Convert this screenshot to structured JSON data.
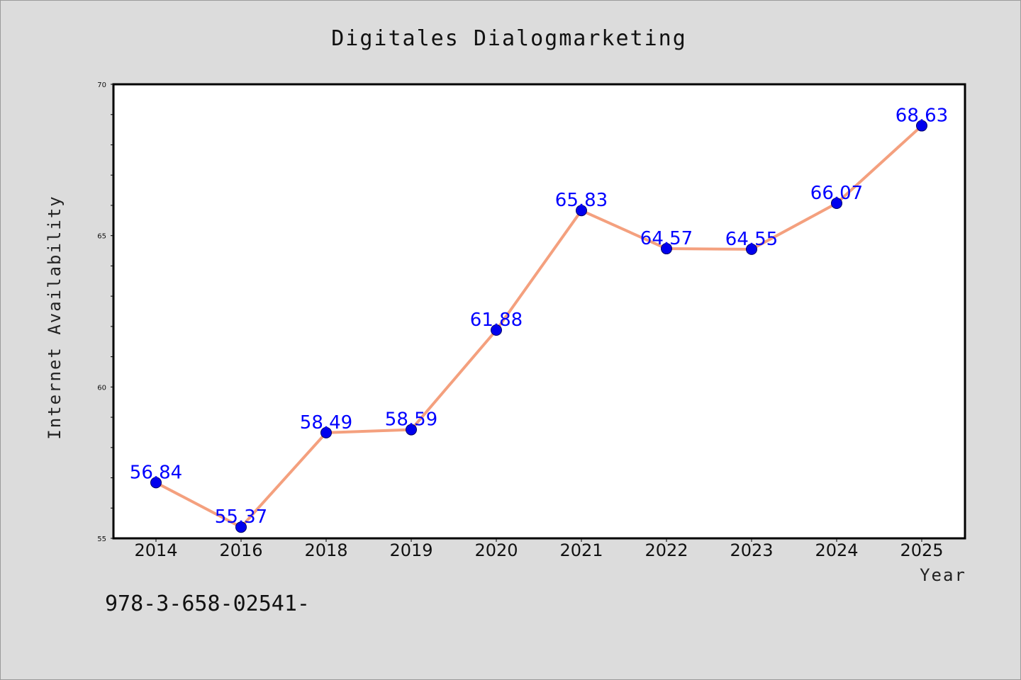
{
  "chart_data": {
    "type": "line",
    "title": "Digitales Dialogmarketing",
    "xlabel": "Year",
    "ylabel": "Internet Availability",
    "categories": [
      "2014",
      "2016",
      "2018",
      "2019",
      "2020",
      "2021",
      "2022",
      "2023",
      "2024",
      "2025"
    ],
    "series": [
      {
        "values": [
          56.84,
          55.37,
          58.49,
          58.59,
          61.88,
          65.83,
          64.57,
          64.55,
          66.07,
          68.63
        ],
        "labels": [
          "56.84",
          "55.37",
          "58.49",
          "58.59",
          "61.88",
          "65.83",
          "64.57",
          "64.55",
          "66.07",
          "68.63"
        ]
      }
    ],
    "ylim": [
      55,
      70
    ],
    "yticks": [
      "55",
      "60",
      "65",
      "70"
    ],
    "grid": false,
    "legend": "none",
    "colors": {
      "line": "#f4a07e",
      "marker": "#0000ee",
      "label": "#0000ff",
      "background": "#dcdcdc",
      "plot_bg": "#ffffff"
    }
  },
  "footer_text": "978-3-658-02541-"
}
